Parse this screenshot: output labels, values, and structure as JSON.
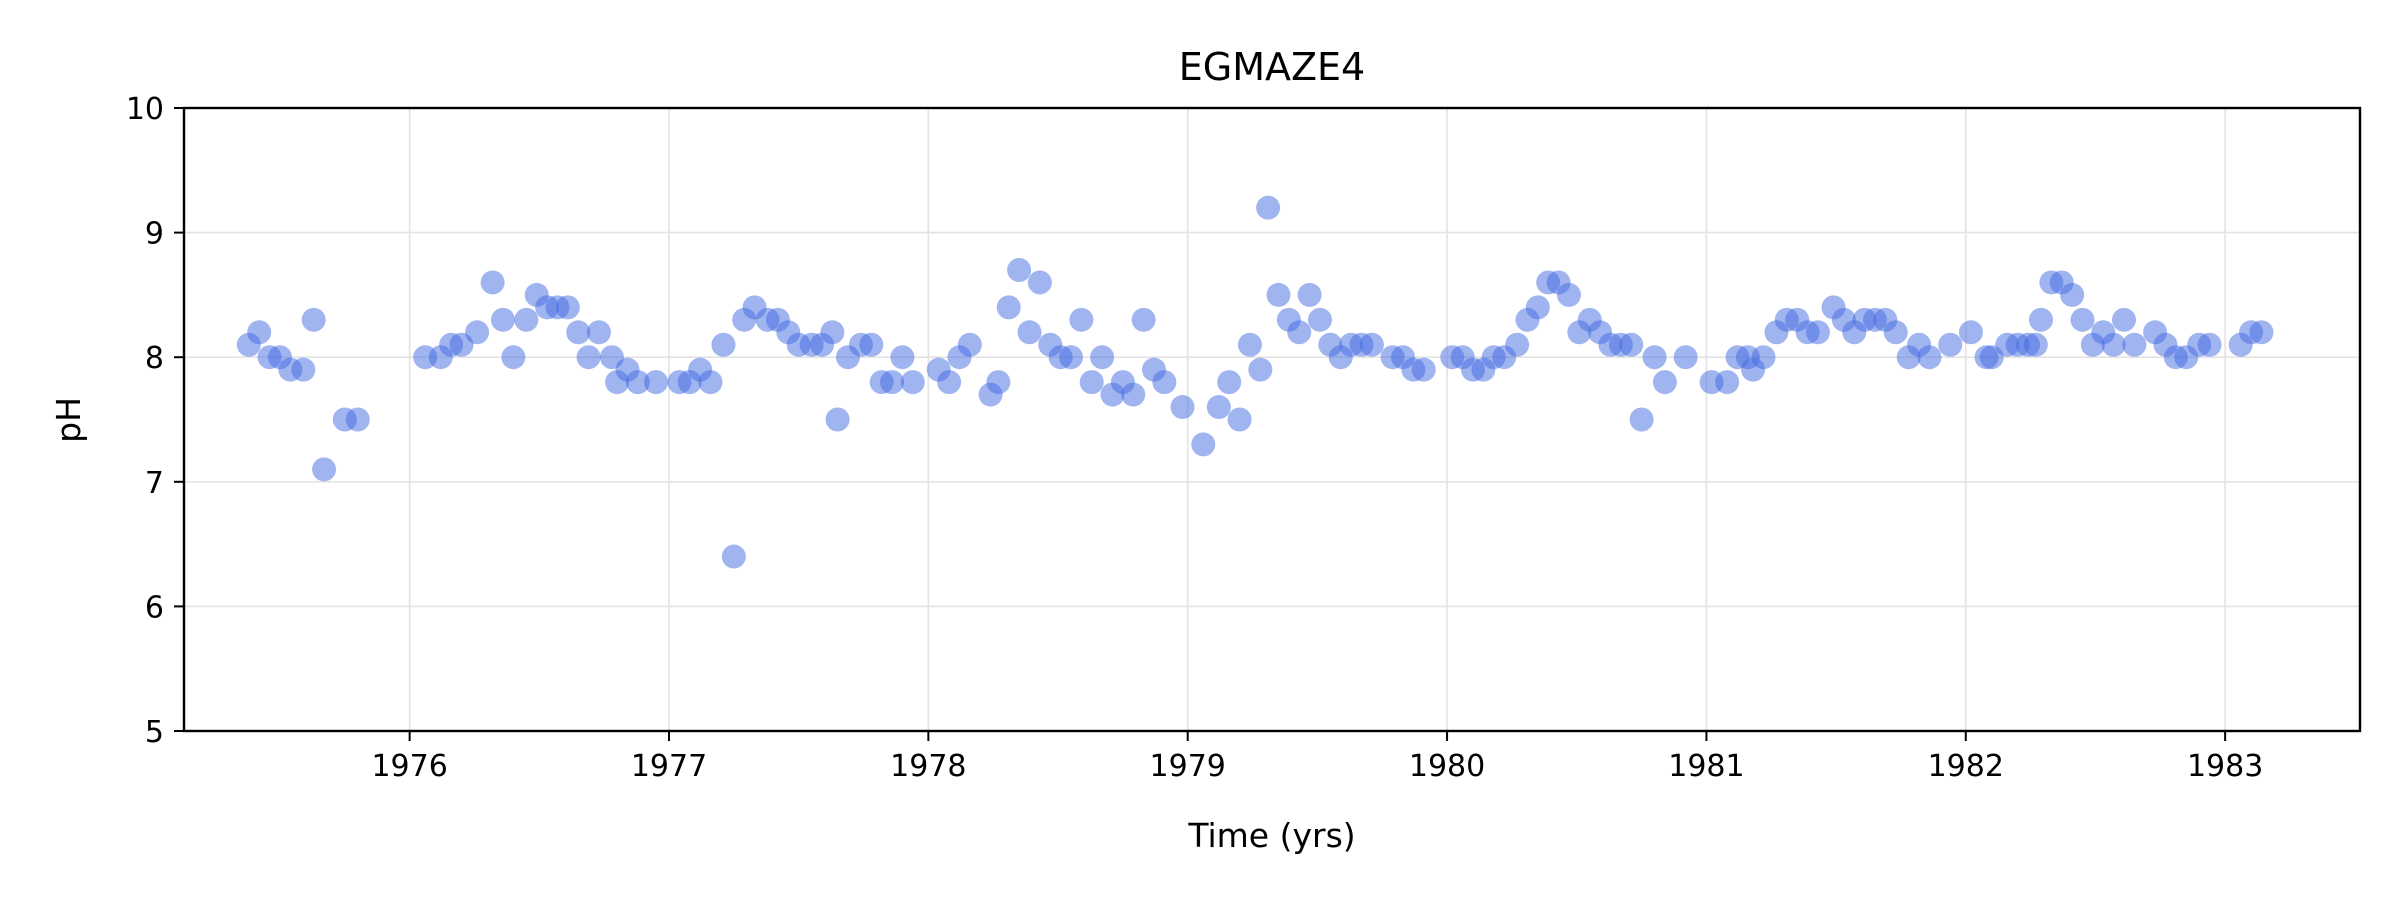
{
  "chart_data": {
    "type": "scatter",
    "title": "EGMAZE4",
    "xlabel": "Time (yrs)",
    "ylabel": "pH",
    "xlim": [
      1975.13,
      1983.52
    ],
    "ylim": [
      5,
      10
    ],
    "xticks": [
      1976,
      1977,
      1978,
      1979,
      1980,
      1981,
      1982,
      1983
    ],
    "yticks": [
      5,
      6,
      7,
      8,
      9,
      10
    ],
    "grid": true,
    "color": "#4169e1",
    "series": [
      {
        "points": [
          [
            1975.38,
            8.1
          ],
          [
            1975.42,
            8.2
          ],
          [
            1975.46,
            8.0
          ],
          [
            1975.5,
            8.0
          ],
          [
            1975.54,
            7.9
          ],
          [
            1975.59,
            7.9
          ],
          [
            1975.63,
            8.3
          ],
          [
            1975.67,
            7.1
          ],
          [
            1975.75,
            7.5
          ],
          [
            1975.8,
            7.5
          ],
          [
            1976.06,
            8.0
          ],
          [
            1976.12,
            8.0
          ],
          [
            1976.16,
            8.1
          ],
          [
            1976.2,
            8.1
          ],
          [
            1976.26,
            8.2
          ],
          [
            1976.32,
            8.6
          ],
          [
            1976.36,
            8.3
          ],
          [
            1976.4,
            8.0
          ],
          [
            1976.45,
            8.3
          ],
          [
            1976.49,
            8.5
          ],
          [
            1976.53,
            8.4
          ],
          [
            1976.57,
            8.4
          ],
          [
            1976.61,
            8.4
          ],
          [
            1976.65,
            8.2
          ],
          [
            1976.69,
            8.0
          ],
          [
            1976.73,
            8.2
          ],
          [
            1976.78,
            8.0
          ],
          [
            1976.8,
            7.8
          ],
          [
            1976.84,
            7.9
          ],
          [
            1976.88,
            7.8
          ],
          [
            1976.95,
            7.8
          ],
          [
            1977.04,
            7.8
          ],
          [
            1977.08,
            7.8
          ],
          [
            1977.12,
            7.9
          ],
          [
            1977.16,
            7.8
          ],
          [
            1977.21,
            8.1
          ],
          [
            1977.25,
            6.4
          ],
          [
            1977.29,
            8.3
          ],
          [
            1977.33,
            8.4
          ],
          [
            1977.38,
            8.3
          ],
          [
            1977.42,
            8.3
          ],
          [
            1977.46,
            8.2
          ],
          [
            1977.5,
            8.1
          ],
          [
            1977.55,
            8.1
          ],
          [
            1977.59,
            8.1
          ],
          [
            1977.63,
            8.2
          ],
          [
            1977.65,
            7.5
          ],
          [
            1977.69,
            8.0
          ],
          [
            1977.74,
            8.1
          ],
          [
            1977.78,
            8.1
          ],
          [
            1977.82,
            7.8
          ],
          [
            1977.86,
            7.8
          ],
          [
            1977.9,
            8.0
          ],
          [
            1977.94,
            7.8
          ],
          [
            1978.04,
            7.9
          ],
          [
            1978.08,
            7.8
          ],
          [
            1978.12,
            8.0
          ],
          [
            1978.16,
            8.1
          ],
          [
            1978.24,
            7.7
          ],
          [
            1978.27,
            7.8
          ],
          [
            1978.31,
            8.4
          ],
          [
            1978.35,
            8.7
          ],
          [
            1978.39,
            8.2
          ],
          [
            1978.43,
            8.6
          ],
          [
            1978.47,
            8.1
          ],
          [
            1978.51,
            8.0
          ],
          [
            1978.55,
            8.0
          ],
          [
            1978.59,
            8.3
          ],
          [
            1978.63,
            7.8
          ],
          [
            1978.67,
            8.0
          ],
          [
            1978.71,
            7.7
          ],
          [
            1978.75,
            7.8
          ],
          [
            1978.79,
            7.7
          ],
          [
            1978.83,
            8.3
          ],
          [
            1978.87,
            7.9
          ],
          [
            1978.91,
            7.8
          ],
          [
            1978.98,
            7.6
          ],
          [
            1979.06,
            7.3
          ],
          [
            1979.12,
            7.6
          ],
          [
            1979.16,
            7.8
          ],
          [
            1979.2,
            7.5
          ],
          [
            1979.24,
            8.1
          ],
          [
            1979.28,
            7.9
          ],
          [
            1979.31,
            9.2
          ],
          [
            1979.35,
            8.5
          ],
          [
            1979.39,
            8.3
          ],
          [
            1979.43,
            8.2
          ],
          [
            1979.47,
            8.5
          ],
          [
            1979.51,
            8.3
          ],
          [
            1979.55,
            8.1
          ],
          [
            1979.59,
            8.0
          ],
          [
            1979.63,
            8.1
          ],
          [
            1979.67,
            8.1
          ],
          [
            1979.71,
            8.1
          ],
          [
            1979.79,
            8.0
          ],
          [
            1979.83,
            8.0
          ],
          [
            1979.87,
            7.9
          ],
          [
            1979.91,
            7.9
          ],
          [
            1980.02,
            8.0
          ],
          [
            1980.06,
            8.0
          ],
          [
            1980.1,
            7.9
          ],
          [
            1980.14,
            7.9
          ],
          [
            1980.18,
            8.0
          ],
          [
            1980.22,
            8.0
          ],
          [
            1980.27,
            8.1
          ],
          [
            1980.31,
            8.3
          ],
          [
            1980.35,
            8.4
          ],
          [
            1980.39,
            8.6
          ],
          [
            1980.43,
            8.6
          ],
          [
            1980.47,
            8.5
          ],
          [
            1980.51,
            8.2
          ],
          [
            1980.55,
            8.3
          ],
          [
            1980.59,
            8.2
          ],
          [
            1980.63,
            8.1
          ],
          [
            1980.67,
            8.1
          ],
          [
            1980.71,
            8.1
          ],
          [
            1980.75,
            7.5
          ],
          [
            1980.8,
            8.0
          ],
          [
            1980.84,
            7.8
          ],
          [
            1980.92,
            8.0
          ],
          [
            1981.02,
            7.8
          ],
          [
            1981.08,
            7.8
          ],
          [
            1981.12,
            8.0
          ],
          [
            1981.16,
            8.0
          ],
          [
            1981.18,
            7.9
          ],
          [
            1981.22,
            8.0
          ],
          [
            1981.27,
            8.2
          ],
          [
            1981.31,
            8.3
          ],
          [
            1981.35,
            8.3
          ],
          [
            1981.39,
            8.2
          ],
          [
            1981.43,
            8.2
          ],
          [
            1981.49,
            8.4
          ],
          [
            1981.53,
            8.3
          ],
          [
            1981.57,
            8.2
          ],
          [
            1981.61,
            8.3
          ],
          [
            1981.65,
            8.3
          ],
          [
            1981.69,
            8.3
          ],
          [
            1981.73,
            8.2
          ],
          [
            1981.78,
            8.0
          ],
          [
            1981.82,
            8.1
          ],
          [
            1981.86,
            8.0
          ],
          [
            1981.94,
            8.1
          ],
          [
            1982.02,
            8.2
          ],
          [
            1982.08,
            8.0
          ],
          [
            1982.1,
            8.0
          ],
          [
            1982.16,
            8.1
          ],
          [
            1982.2,
            8.1
          ],
          [
            1982.24,
            8.1
          ],
          [
            1982.27,
            8.1
          ],
          [
            1982.29,
            8.3
          ],
          [
            1982.33,
            8.6
          ],
          [
            1982.37,
            8.6
          ],
          [
            1982.41,
            8.5
          ],
          [
            1982.45,
            8.3
          ],
          [
            1982.49,
            8.1
          ],
          [
            1982.53,
            8.2
          ],
          [
            1982.57,
            8.1
          ],
          [
            1982.61,
            8.3
          ],
          [
            1982.65,
            8.1
          ],
          [
            1982.73,
            8.2
          ],
          [
            1982.77,
            8.1
          ],
          [
            1982.81,
            8.0
          ],
          [
            1982.85,
            8.0
          ],
          [
            1982.9,
            8.1
          ],
          [
            1982.94,
            8.1
          ],
          [
            1983.06,
            8.1
          ],
          [
            1983.1,
            8.2
          ],
          [
            1983.14,
            8.2
          ]
        ]
      }
    ]
  }
}
